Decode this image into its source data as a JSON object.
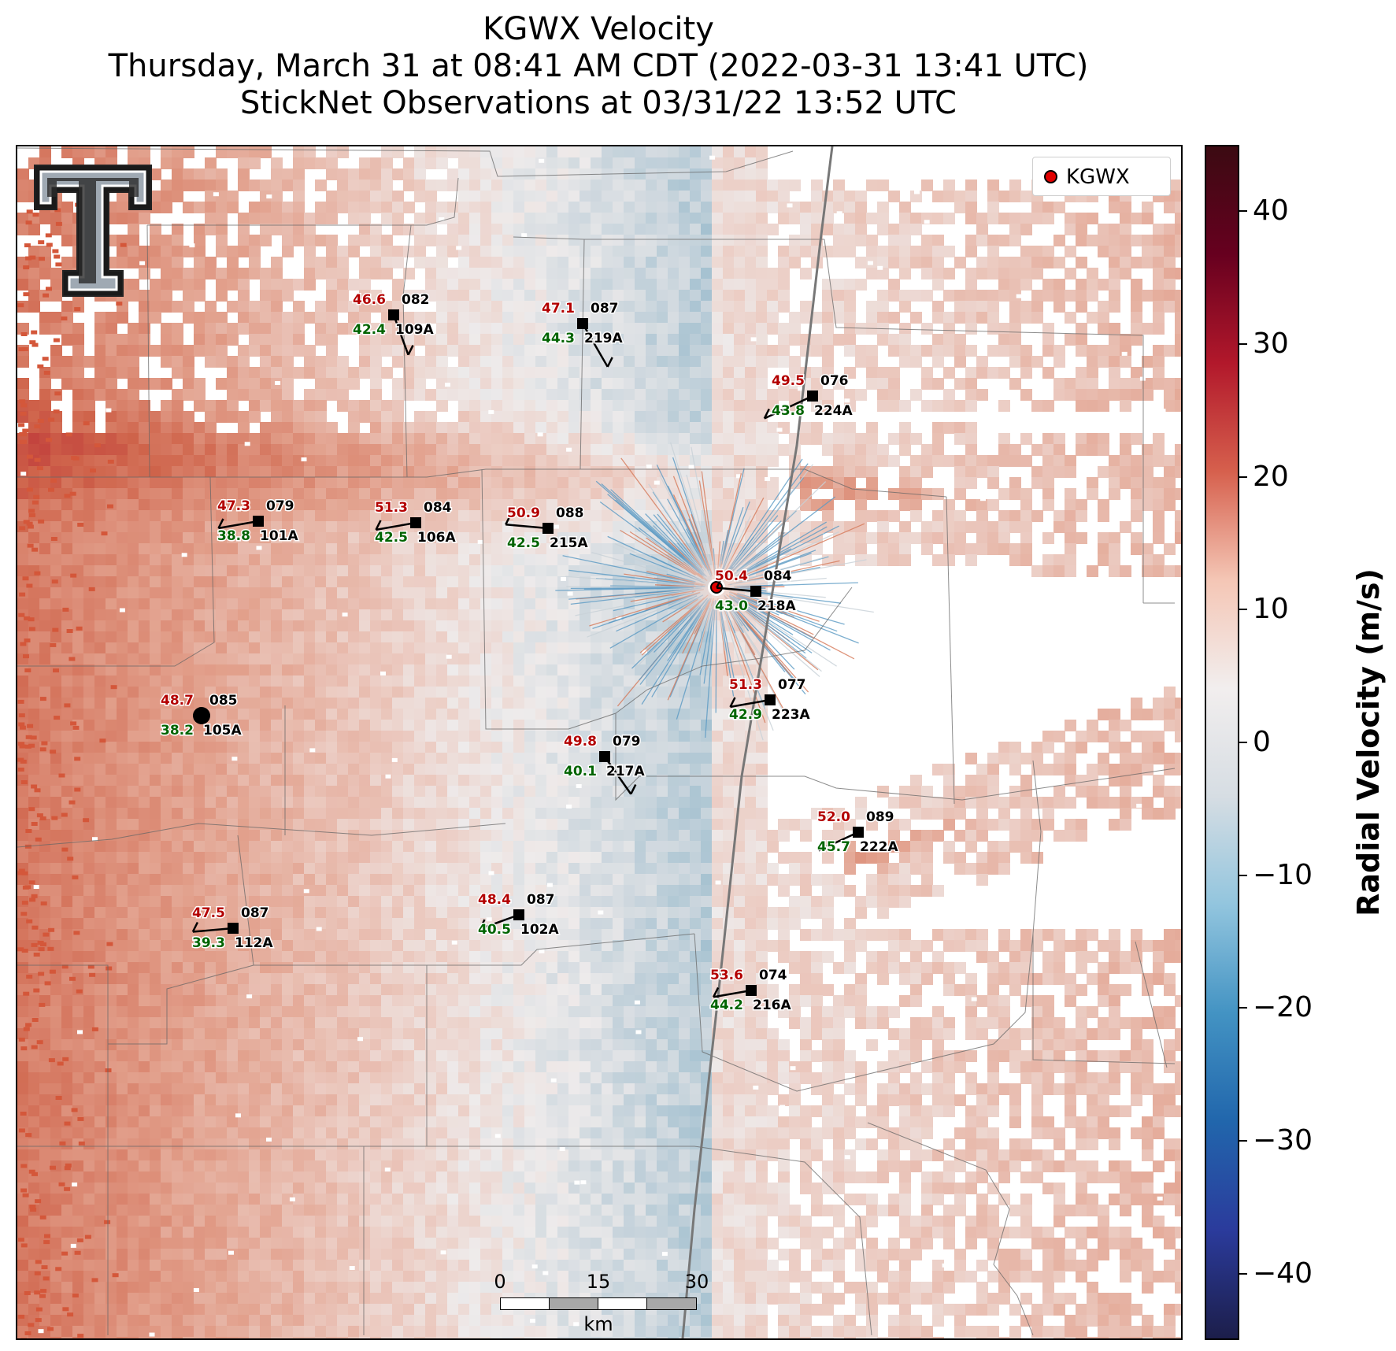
{
  "title": {
    "line1": "KGWX Velocity",
    "line2": "Thursday, March 31 at 08:41 AM CDT (2022-03-31 13:41 UTC)",
    "line3": "StickNet Observations at 03/31/22 13:52 UTC"
  },
  "legend": {
    "label": "KGWX",
    "marker_color": "#e00000"
  },
  "colorbar": {
    "label": "Radial Velocity (m/s)",
    "ticks": [
      "40",
      "30",
      "20",
      "10",
      "0",
      "−10",
      "−20",
      "−30",
      "−40"
    ],
    "tick_values": [
      40,
      30,
      20,
      10,
      0,
      -10,
      -20,
      -30,
      -40
    ],
    "range": [
      -45,
      45
    ],
    "colors": [
      "#1c1e4a",
      "#2b3b9c",
      "#2166ac",
      "#4393c3",
      "#92c5de",
      "#d6dde3",
      "#f2eeee",
      "#f4c6b5",
      "#d6604d",
      "#b2182b",
      "#67001f",
      "#3b0a12"
    ]
  },
  "scalebar": {
    "ticks": [
      "0",
      "15",
      "30"
    ],
    "unit": "km"
  },
  "colors": {
    "temp_text": "#b30000",
    "dew_text": "#006400",
    "radar_site": "#e00000",
    "county_lines": "#666666",
    "highway": "#777777"
  },
  "logo": {
    "icon": "texas-tech-double-t-logo",
    "letter": "T"
  },
  "stations": [
    {
      "id": "082",
      "name": "109A",
      "temp": "46.6",
      "dew": "42.4"
    },
    {
      "id": "087",
      "name": "219A",
      "temp": "47.1",
      "dew": "44.3"
    },
    {
      "id": "076",
      "name": "224A",
      "temp": "49.5",
      "dew": "43.8"
    },
    {
      "id": "079",
      "name": "101A",
      "temp": "47.3",
      "dew": "38.8"
    },
    {
      "id": "084",
      "name": "106A",
      "temp": "51.3",
      "dew": "42.5"
    },
    {
      "id": "088",
      "name": "215A",
      "temp": "50.9",
      "dew": "42.5"
    },
    {
      "id": "084",
      "name": "218A",
      "temp": "50.4",
      "dew": "43.0"
    },
    {
      "id": "077",
      "name": "223A",
      "temp": "51.3",
      "dew": "42.9"
    },
    {
      "id": "085",
      "name": "105A",
      "temp": "48.7",
      "dew": "38.2"
    },
    {
      "id": "079",
      "name": "217A",
      "temp": "49.8",
      "dew": "40.1"
    },
    {
      "id": "089",
      "name": "222A",
      "temp": "52.0",
      "dew": "45.7"
    },
    {
      "id": "087",
      "name": "112A",
      "temp": "47.5",
      "dew": "39.3"
    },
    {
      "id": "087",
      "name": "102A",
      "temp": "48.4",
      "dew": "40.5"
    },
    {
      "id": "074",
      "name": "216A",
      "temp": "53.6",
      "dew": "44.2"
    }
  ]
}
